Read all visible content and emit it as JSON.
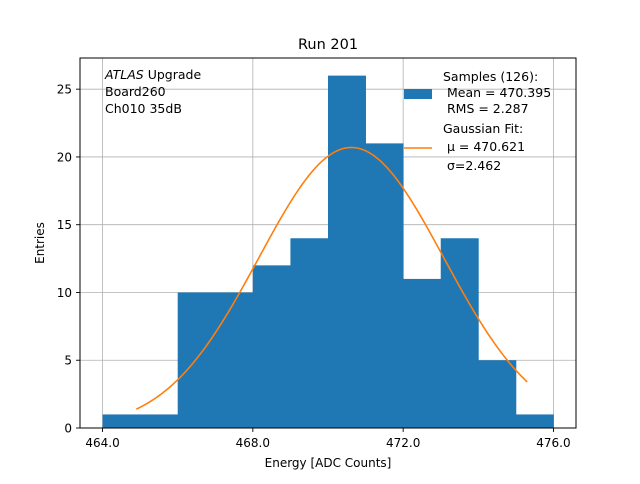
{
  "chart_data": {
    "type": "bar",
    "title": "Run 201",
    "xlabel": "Energy [ADC Counts]",
    "ylabel": "Entries",
    "xlim": [
      463.4,
      476.6
    ],
    "ylim": [
      0,
      27.3
    ],
    "grid": true,
    "x_ticks": [
      464,
      468,
      472,
      476
    ],
    "x_tick_labels": [
      "464.0",
      "468.0",
      "472.0",
      "476.0"
    ],
    "y_ticks": [
      0,
      5,
      10,
      15,
      20,
      25
    ],
    "y_tick_labels": [
      "0",
      "5",
      "10",
      "15",
      "20",
      "25"
    ],
    "bin_edges": [
      464,
      465,
      466,
      467,
      468,
      469,
      470,
      471,
      472,
      473,
      474,
      475,
      476
    ],
    "series": [
      {
        "kind": "histogram",
        "name": "Samples (126):",
        "values": [
          1,
          1,
          10,
          10,
          12,
          14,
          26,
          21,
          11,
          14,
          5,
          1
        ],
        "color": "#1f77b4"
      },
      {
        "kind": "fit",
        "name": "Gaussian Fit:",
        "color": "#ff7f0e",
        "mean": 470.621,
        "sigma": 2.462,
        "amplitude": 20.7,
        "x_range": [
          464.9,
          475.3
        ]
      }
    ],
    "legend_placement": "upper right",
    "legend": {
      "hist_lines": [
        "Samples (126):",
        " Mean = 470.395",
        " RMS = 2.287"
      ],
      "fit_lines": [
        "Gaussian Fit:",
        " μ = 470.621",
        " σ=2.462"
      ]
    },
    "annotation": {
      "italic": "ATLAS",
      "rest": " Upgrade",
      "line2": " Board260",
      "line3": " Ch010 35dB"
    }
  }
}
